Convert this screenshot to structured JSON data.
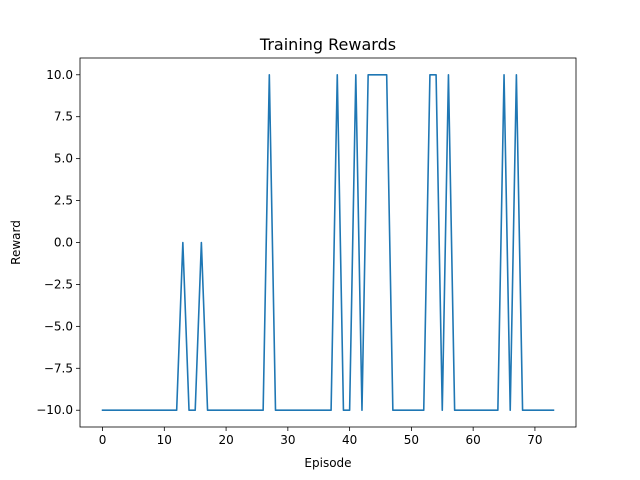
{
  "chart_data": {
    "type": "line",
    "title": "Training Rewards",
    "xlabel": "Episode",
    "ylabel": "Reward",
    "xlim": [
      -3.65,
      76.65
    ],
    "ylim": [
      -11,
      11
    ],
    "xticks": [
      0,
      10,
      20,
      30,
      40,
      50,
      60,
      70
    ],
    "yticks": [
      -10,
      -7.5,
      -5,
      -2.5,
      0,
      2.5,
      5,
      7.5,
      10
    ],
    "ytick_labels": [
      "−10.0",
      "−7.5",
      "−5.0",
      "−2.5",
      "0.0",
      "2.5",
      "5.0",
      "7.5",
      "10.0"
    ],
    "grid": false,
    "series": [
      {
        "color": "#1f77b4",
        "x": [
          0,
          1,
          2,
          3,
          4,
          5,
          6,
          7,
          8,
          9,
          10,
          11,
          12,
          13,
          14,
          15,
          16,
          17,
          18,
          19,
          20,
          21,
          22,
          23,
          24,
          25,
          26,
          27,
          28,
          29,
          30,
          31,
          32,
          33,
          34,
          35,
          36,
          37,
          38,
          39,
          40,
          41,
          42,
          43,
          44,
          45,
          46,
          47,
          48,
          49,
          50,
          51,
          52,
          53,
          54,
          55,
          56,
          57,
          58,
          59,
          60,
          61,
          62,
          63,
          64,
          65,
          66,
          67,
          68,
          69,
          70,
          71,
          72,
          73
        ],
        "values": [
          -10,
          -10,
          -10,
          -10,
          -10,
          -10,
          -10,
          -10,
          -10,
          -10,
          -10,
          -10,
          -10,
          0,
          -10,
          -10,
          0,
          -10,
          -10,
          -10,
          -10,
          -10,
          -10,
          -10,
          -10,
          -10,
          -10,
          10,
          -10,
          -10,
          -10,
          -10,
          -10,
          -10,
          -10,
          -10,
          -10,
          -10,
          10,
          -10,
          -10,
          10,
          -10,
          10,
          10,
          10,
          10,
          -10,
          -10,
          -10,
          -10,
          -10,
          -10,
          10,
          10,
          -10,
          10,
          -10,
          -10,
          -10,
          -10,
          -10,
          -10,
          -10,
          -10,
          10,
          -10,
          10,
          -10,
          -10,
          -10,
          -10,
          -10,
          -10
        ]
      }
    ]
  }
}
